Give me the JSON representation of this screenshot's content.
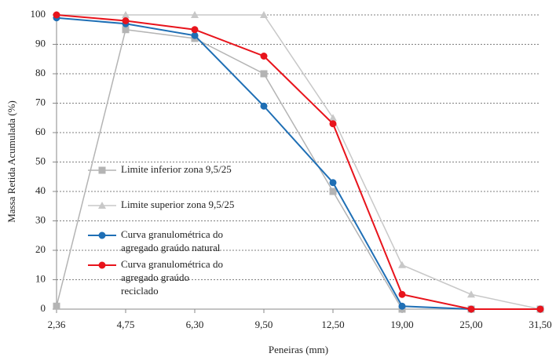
{
  "chart_data": {
    "type": "line",
    "x_label": "Peneiras (mm)",
    "y_label": "Massa Retida Acumulada (%)",
    "categories": [
      "2,36",
      "4,75",
      "6,30",
      "9,50",
      "12,50",
      "19,00",
      "25,00",
      "31,50"
    ],
    "series": [
      {
        "name": "Limite inferior zona 9,5/25",
        "color": "#b4b4b4",
        "marker": "square",
        "values": [
          1,
          95,
          92,
          80,
          40,
          0,
          0,
          0
        ]
      },
      {
        "name": "Limite superior zona 9,5/25",
        "color": "#c8c8c8",
        "marker": "triangle",
        "values": [
          100,
          100,
          100,
          100,
          65,
          15,
          5,
          0
        ]
      },
      {
        "name": "Curva granulométrica do agregado graúdo natural",
        "color": "#1f6fb5",
        "marker": "circle",
        "values": [
          99,
          97,
          93,
          69,
          43,
          1,
          0,
          0
        ]
      },
      {
        "name": "Curva granulométrica do agregado graúdo reciclado",
        "color": "#e8141c",
        "marker": "circle",
        "values": [
          100,
          98,
          95,
          86,
          63,
          5,
          0,
          0
        ]
      }
    ],
    "ylim": [
      0,
      100
    ],
    "yticks": [
      0,
      10,
      20,
      30,
      40,
      50,
      60,
      70,
      80,
      90,
      100
    ],
    "grid": true
  }
}
